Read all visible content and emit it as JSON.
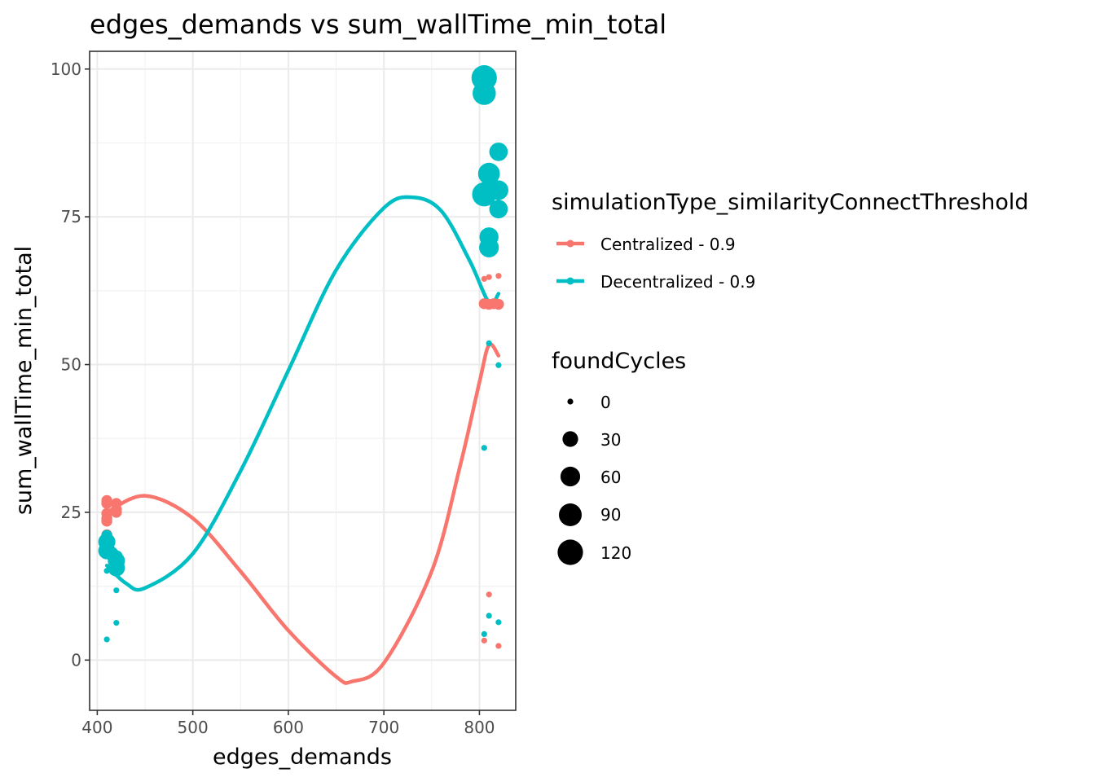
{
  "chart_data": {
    "type": "scatter",
    "title": "edges_demands  vs  sum_wallTime_min_total",
    "xlabel": "edges_demands",
    "ylabel": "sum_wallTime_min_total",
    "xlim": [
      392,
      838
    ],
    "ylim": [
      -8.5,
      103
    ],
    "x_ticks": [
      400,
      500,
      600,
      700,
      800
    ],
    "y_ticks": [
      0,
      25,
      50,
      75,
      100
    ],
    "x_tick_labels": [
      "400",
      "500",
      "600",
      "700",
      "800"
    ],
    "y_tick_labels": [
      "0",
      "25",
      "50",
      "75",
      "100"
    ],
    "grid": true,
    "legend_position": "right",
    "color_legend": {
      "title": "simulationType_similarityConnectThreshold",
      "entries": [
        "Centralized - 0.9",
        "Decentralized - 0.9"
      ]
    },
    "size_legend": {
      "title": "foundCycles",
      "entries": [
        {
          "label": "0",
          "value": 0
        },
        {
          "label": "30",
          "value": 30
        },
        {
          "label": "60",
          "value": 60
        },
        {
          "label": "90",
          "value": 90
        },
        {
          "label": "120",
          "value": 120
        }
      ]
    },
    "series": [
      {
        "name": "Centralized - 0.9",
        "color": "#F8766D",
        "points": [
          {
            "x": 410,
            "y": 27.0,
            "size": 8
          },
          {
            "x": 410,
            "y": 26.5,
            "size": 8
          },
          {
            "x": 410,
            "y": 24.8,
            "size": 8
          },
          {
            "x": 410,
            "y": 24.0,
            "size": 8
          },
          {
            "x": 410,
            "y": 23.5,
            "size": 8
          },
          {
            "x": 410,
            "y": 21.2,
            "size": 8
          },
          {
            "x": 420,
            "y": 26.5,
            "size": 8
          },
          {
            "x": 420,
            "y": 25.5,
            "size": 8
          },
          {
            "x": 420,
            "y": 25.0,
            "size": 8
          },
          {
            "x": 805,
            "y": 64.5,
            "size": 0
          },
          {
            "x": 810,
            "y": 64.8,
            "size": 0
          },
          {
            "x": 820,
            "y": 65.0,
            "size": 0
          },
          {
            "x": 805,
            "y": 60.3,
            "size": 8
          },
          {
            "x": 810,
            "y": 60.2,
            "size": 8
          },
          {
            "x": 815,
            "y": 60.3,
            "size": 8
          },
          {
            "x": 820,
            "y": 60.2,
            "size": 8
          },
          {
            "x": 810,
            "y": 11.1,
            "size": 0
          },
          {
            "x": 805,
            "y": 3.3,
            "size": 0
          },
          {
            "x": 820,
            "y": 2.4,
            "size": 0
          }
        ],
        "fit": [
          {
            "x": 410,
            "y": 25.0
          },
          {
            "x": 450,
            "y": 27.8
          },
          {
            "x": 500,
            "y": 24.0
          },
          {
            "x": 550,
            "y": 15.0
          },
          {
            "x": 600,
            "y": 5.0
          },
          {
            "x": 650,
            "y": -2.8
          },
          {
            "x": 667,
            "y": -3.6
          },
          {
            "x": 700,
            "y": -0.5
          },
          {
            "x": 750,
            "y": 15.0
          },
          {
            "x": 780,
            "y": 33.0
          },
          {
            "x": 800,
            "y": 47.0
          },
          {
            "x": 810,
            "y": 53.3
          },
          {
            "x": 820,
            "y": 51.5
          }
        ]
      },
      {
        "name": "Decentralized - 0.9",
        "color": "#00BFC4",
        "points": [
          {
            "x": 805,
            "y": 98.5,
            "size": 120
          },
          {
            "x": 805,
            "y": 95.9,
            "size": 95
          },
          {
            "x": 820,
            "y": 86.0,
            "size": 50
          },
          {
            "x": 810,
            "y": 82.3,
            "size": 80
          },
          {
            "x": 805,
            "y": 78.8,
            "size": 105
          },
          {
            "x": 820,
            "y": 79.5,
            "size": 60
          },
          {
            "x": 820,
            "y": 76.3,
            "size": 50
          },
          {
            "x": 810,
            "y": 71.6,
            "size": 55
          },
          {
            "x": 810,
            "y": 69.8,
            "size": 60
          },
          {
            "x": 810,
            "y": 53.6,
            "size": 0
          },
          {
            "x": 820,
            "y": 49.9,
            "size": 0
          },
          {
            "x": 805,
            "y": 35.9,
            "size": 0
          },
          {
            "x": 810,
            "y": 7.5,
            "size": 0
          },
          {
            "x": 805,
            "y": 4.4,
            "size": 0
          },
          {
            "x": 820,
            "y": 6.4,
            "size": 0
          },
          {
            "x": 410,
            "y": 21.1,
            "size": 8
          },
          {
            "x": 410,
            "y": 20.0,
            "size": 40
          },
          {
            "x": 410,
            "y": 18.5,
            "size": 40
          },
          {
            "x": 415,
            "y": 18.0,
            "size": 20
          },
          {
            "x": 420,
            "y": 17.5,
            "size": 15
          },
          {
            "x": 420,
            "y": 16.8,
            "size": 40
          },
          {
            "x": 420,
            "y": 15.6,
            "size": 40
          },
          {
            "x": 410,
            "y": 15.1,
            "size": 0
          },
          {
            "x": 420,
            "y": 11.8,
            "size": 0
          },
          {
            "x": 420,
            "y": 6.3,
            "size": 0
          },
          {
            "x": 410,
            "y": 3.5,
            "size": 0
          }
        ],
        "fit": [
          {
            "x": 410,
            "y": 16.0
          },
          {
            "x": 430,
            "y": 13.0
          },
          {
            "x": 450,
            "y": 12.2
          },
          {
            "x": 500,
            "y": 18.0
          },
          {
            "x": 550,
            "y": 32.0
          },
          {
            "x": 600,
            "y": 49.0
          },
          {
            "x": 650,
            "y": 66.0
          },
          {
            "x": 700,
            "y": 76.5
          },
          {
            "x": 730,
            "y": 78.3
          },
          {
            "x": 760,
            "y": 76.0
          },
          {
            "x": 790,
            "y": 67.5
          },
          {
            "x": 810,
            "y": 60.5
          },
          {
            "x": 820,
            "y": 62.0
          }
        ]
      }
    ]
  }
}
